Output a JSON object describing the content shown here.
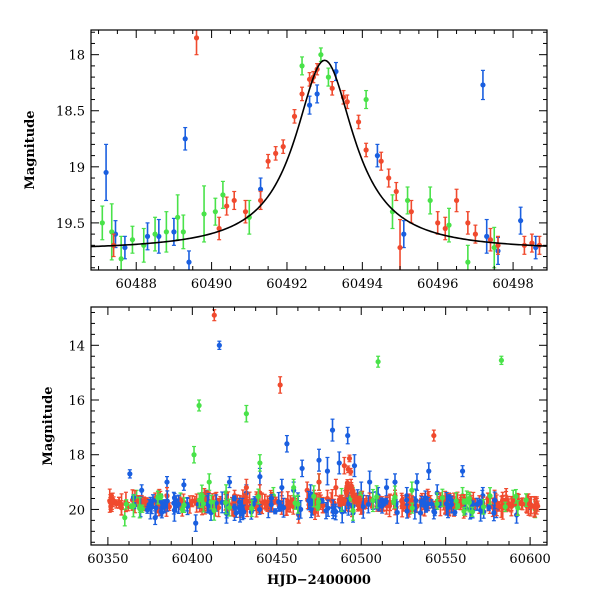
{
  "colors": {
    "blue": "#1a5fe0",
    "green": "#49e249",
    "red": "#f04a2e",
    "model": "#000000"
  },
  "chart_data": [
    {
      "type": "scatter",
      "title": "",
      "xlabel": "",
      "ylabel": "Magnitude",
      "xlim": [
        60486.8,
        60498.9
      ],
      "ylim": [
        19.92,
        17.78
      ],
      "y_inverted": true,
      "x_ticks": [
        60488,
        60490,
        60492,
        60494,
        60496,
        60498
      ],
      "y_ticks": [
        18,
        18.5,
        19,
        19.5
      ],
      "grid": false,
      "legend": "none",
      "model": {
        "type": "lorentzian",
        "peak_x": 60493.0,
        "peak_mag": 18.05,
        "baseline_mag": 19.75,
        "half_width": 0.95
      },
      "series": [
        {
          "color": "blue",
          "points": [
            [
              60487.2,
              19.05,
              0.25
            ],
            [
              60487.45,
              19.6,
              0.12
            ],
            [
              60487.7,
              19.72,
              0.1
            ],
            [
              60488.3,
              19.62,
              0.12
            ],
            [
              60488.6,
              19.62,
              0.15
            ],
            [
              60489.0,
              19.58,
              0.12
            ],
            [
              60489.3,
              18.75,
              0.1
            ],
            [
              60489.4,
              19.85,
              0.1
            ],
            [
              60491.3,
              19.2,
              0.1
            ],
            [
              60492.6,
              18.45,
              0.08
            ],
            [
              60492.8,
              18.35,
              0.08
            ],
            [
              60493.3,
              18.15,
              0.08
            ],
            [
              60494.4,
              18.9,
              0.1
            ],
            [
              60495.1,
              19.6,
              0.12
            ],
            [
              60497.2,
              18.27,
              0.13
            ],
            [
              60497.3,
              19.62,
              0.15
            ],
            [
              60497.6,
              19.75,
              0.12
            ],
            [
              60498.2,
              19.48,
              0.12
            ],
            [
              60498.6,
              19.72,
              0.1
            ]
          ]
        },
        {
          "color": "green",
          "points": [
            [
              60487.1,
              19.5,
              0.15
            ],
            [
              60487.35,
              19.58,
              0.25
            ],
            [
              60487.6,
              19.82,
              0.2
            ],
            [
              60487.9,
              19.65,
              0.12
            ],
            [
              60488.2,
              19.7,
              0.15
            ],
            [
              60488.5,
              19.6,
              0.15
            ],
            [
              60488.8,
              19.58,
              0.18
            ],
            [
              60489.1,
              19.45,
              0.2
            ],
            [
              60489.25,
              19.58,
              0.15
            ],
            [
              60489.8,
              19.42,
              0.25
            ],
            [
              60490.1,
              19.4,
              0.12
            ],
            [
              60490.3,
              19.25,
              0.12
            ],
            [
              60491.0,
              19.45,
              0.15
            ],
            [
              60492.4,
              18.1,
              0.08
            ],
            [
              60492.9,
              18.0,
              0.06
            ],
            [
              60493.1,
              18.2,
              0.08
            ],
            [
              60494.1,
              18.4,
              0.08
            ],
            [
              60494.8,
              19.4,
              0.15
            ],
            [
              60495.2,
              19.3,
              0.12
            ],
            [
              60495.8,
              19.3,
              0.12
            ],
            [
              60496.3,
              19.52,
              0.15
            ],
            [
              60496.8,
              19.85,
              0.15
            ],
            [
              60497.5,
              19.72,
              0.18
            ]
          ]
        },
        {
          "color": "red",
          "points": [
            [
              60487.4,
              19.7,
              0.1
            ],
            [
              60489.6,
              17.85,
              0.15
            ],
            [
              60490.2,
              19.55,
              0.1
            ],
            [
              60490.4,
              19.35,
              0.08
            ],
            [
              60490.6,
              19.3,
              0.08
            ],
            [
              60490.9,
              19.4,
              0.1
            ],
            [
              60491.3,
              19.3,
              0.08
            ],
            [
              60491.5,
              18.95,
              0.06
            ],
            [
              60491.7,
              18.88,
              0.06
            ],
            [
              60491.9,
              18.82,
              0.06
            ],
            [
              60492.2,
              18.55,
              0.06
            ],
            [
              60492.4,
              18.35,
              0.06
            ],
            [
              60492.6,
              18.22,
              0.06
            ],
            [
              60492.7,
              18.2,
              0.05
            ],
            [
              60492.8,
              18.13,
              0.05
            ],
            [
              60493.2,
              18.3,
              0.06
            ],
            [
              60493.5,
              18.38,
              0.06
            ],
            [
              60493.6,
              18.42,
              0.06
            ],
            [
              60493.9,
              18.6,
              0.06
            ],
            [
              60494.1,
              18.85,
              0.06
            ],
            [
              60494.5,
              18.95,
              0.08
            ],
            [
              60494.7,
              19.1,
              0.08
            ],
            [
              60494.9,
              19.22,
              0.08
            ],
            [
              60495.0,
              19.72,
              0.25
            ],
            [
              60495.3,
              19.4,
              0.1
            ],
            [
              60496.0,
              19.5,
              0.1
            ],
            [
              60496.2,
              19.55,
              0.1
            ],
            [
              60496.5,
              19.3,
              0.1
            ],
            [
              60496.8,
              19.5,
              0.1
            ],
            [
              60497.0,
              19.6,
              0.08
            ],
            [
              60497.4,
              19.65,
              0.1
            ],
            [
              60497.6,
              19.7,
              0.08
            ],
            [
              60498.3,
              19.7,
              0.08
            ],
            [
              60498.5,
              19.68,
              0.08
            ],
            [
              60498.7,
              19.7,
              0.08
            ]
          ]
        }
      ]
    },
    {
      "type": "scatter",
      "title": "",
      "xlabel": "HJD−2400000",
      "ylabel": "Magnitude",
      "xlim": [
        60340,
        60610
      ],
      "ylim": [
        21.3,
        12.6
      ],
      "y_inverted": true,
      "x_ticks": [
        60350,
        60400,
        60450,
        60500,
        60550,
        60600
      ],
      "y_ticks": [
        14,
        16,
        18,
        20
      ],
      "grid": false,
      "legend": "none",
      "series": [
        {
          "color": "blue",
          "points": [
            [
              60363,
              18.7,
              0.15
            ],
            [
              60370,
              19.3,
              0.2
            ],
            [
              60378,
              20.3,
              0.25
            ],
            [
              60385,
              19.0,
              0.2
            ],
            [
              60390,
              19.8,
              0.3
            ],
            [
              60395,
              19.1,
              0.2
            ],
            [
              60402,
              20.5,
              0.3
            ],
            [
              60408,
              19.5,
              0.2
            ],
            [
              60416,
              14.0,
              0.15
            ],
            [
              60422,
              19.0,
              0.2
            ],
            [
              60425,
              20.2,
              0.2
            ],
            [
              60432,
              19.4,
              0.3
            ],
            [
              60440,
              18.8,
              0.3
            ],
            [
              60445,
              20.0,
              0.3
            ],
            [
              60453,
              19.2,
              0.3
            ],
            [
              60456,
              17.6,
              0.3
            ],
            [
              60460,
              19.3,
              0.3
            ],
            [
              60465,
              18.5,
              0.3
            ],
            [
              60470,
              19.5,
              0.4
            ],
            [
              60475,
              18.2,
              0.4
            ],
            [
              60480,
              18.6,
              0.5
            ],
            [
              60483,
              17.1,
              0.4
            ],
            [
              60487,
              18.3,
              0.4
            ],
            [
              60492,
              17.3,
              0.3
            ],
            [
              60496,
              18.4,
              0.4
            ],
            [
              60500,
              19.4,
              0.4
            ],
            [
              60505,
              19.0,
              0.4
            ],
            [
              60510,
              19.5,
              0.3
            ],
            [
              60515,
              19.2,
              0.3
            ],
            [
              60520,
              19.0,
              0.3
            ],
            [
              60527,
              19.5,
              0.3
            ],
            [
              60533,
              19.0,
              0.3
            ],
            [
              60540,
              18.6,
              0.3
            ],
            [
              60545,
              19.4,
              0.3
            ],
            [
              60552,
              19.7,
              0.3
            ],
            [
              60560,
              18.6,
              0.2
            ],
            [
              60565,
              20.0,
              0.3
            ],
            [
              60572,
              19.5,
              0.3
            ],
            [
              60580,
              20.0,
              0.3
            ],
            [
              60592,
              20.2,
              0.3
            ],
            [
              60600,
              19.8,
              0.2
            ]
          ]
        },
        {
          "color": "green",
          "points": [
            [
              60360,
              20.3,
              0.3
            ],
            [
              60367,
              19.6,
              0.3
            ],
            [
              60380,
              19.5,
              0.2
            ],
            [
              60393,
              19.7,
              0.3
            ],
            [
              60401,
              18.0,
              0.3
            ],
            [
              60404,
              16.2,
              0.2
            ],
            [
              60410,
              19.0,
              0.3
            ],
            [
              60420,
              19.4,
              0.3
            ],
            [
              60432,
              16.5,
              0.3
            ],
            [
              60440,
              18.3,
              0.3
            ],
            [
              60448,
              19.5,
              0.3
            ],
            [
              60460,
              19.2,
              0.3
            ],
            [
              60475,
              19.0,
              0.3
            ],
            [
              60495,
              19.5,
              0.3
            ],
            [
              60510,
              14.6,
              0.2
            ],
            [
              60520,
              19.6,
              0.3
            ],
            [
              60530,
              19.3,
              0.3
            ],
            [
              60545,
              19.7,
              0.3
            ],
            [
              60560,
              19.5,
              0.3
            ],
            [
              60583,
              14.55,
              0.15
            ],
            [
              60590,
              19.6,
              0.3
            ],
            [
              60603,
              20.0,
              0.3
            ]
          ]
        },
        {
          "color": "red",
          "points": [
            [
              60355,
              19.8,
              0.15
            ],
            [
              60362,
              19.9,
              0.15
            ],
            [
              60370,
              19.7,
              0.2
            ],
            [
              60378,
              19.6,
              0.2
            ],
            [
              60385,
              19.5,
              0.3
            ],
            [
              60393,
              19.8,
              0.2
            ],
            [
              60400,
              19.7,
              0.2
            ],
            [
              60413,
              12.9,
              0.2
            ],
            [
              60420,
              19.8,
              0.2
            ],
            [
              60425,
              19.5,
              0.2
            ],
            [
              60432,
              19.2,
              0.3
            ],
            [
              60440,
              19.4,
              0.3
            ],
            [
              60446,
              19.8,
              0.2
            ],
            [
              60452,
              15.45,
              0.3
            ],
            [
              60458,
              19.8,
              0.3
            ],
            [
              60463,
              20.2,
              0.3
            ],
            [
              60468,
              19.3,
              0.3
            ],
            [
              60475,
              19.0,
              0.3
            ],
            [
              60480,
              19.6,
              0.3
            ],
            [
              60485,
              19.2,
              0.3
            ],
            [
              60490,
              18.4,
              0.3
            ],
            [
              60494,
              19.2,
              0.3
            ],
            [
              60498,
              19.7,
              0.3
            ],
            [
              60505,
              19.6,
              0.2
            ],
            [
              60512,
              19.8,
              0.2
            ],
            [
              60520,
              19.5,
              0.2
            ],
            [
              60530,
              19.7,
              0.2
            ],
            [
              60537,
              19.8,
              0.2
            ],
            [
              60543,
              17.3,
              0.2
            ],
            [
              60548,
              19.7,
              0.2
            ],
            [
              60555,
              20.0,
              0.2
            ],
            [
              60565,
              19.7,
              0.2
            ],
            [
              60575,
              19.6,
              0.2
            ],
            [
              60585,
              19.8,
              0.2
            ],
            [
              60595,
              19.8,
              0.2
            ],
            [
              60604,
              19.8,
              0.2
            ]
          ]
        },
        {
          "color": "red",
          "dense_band": true,
          "x_range": [
            60350,
            60605
          ],
          "mag": 19.8,
          "spread": 0.15,
          "count": 260
        },
        {
          "color": "blue",
          "dense_band": true,
          "x_range": [
            60365,
            60585
          ],
          "mag": 19.85,
          "spread": 0.3,
          "count": 120
        },
        {
          "color": "green",
          "dense_band": true,
          "x_range": [
            60360,
            60605
          ],
          "mag": 19.8,
          "spread": 0.3,
          "count": 50
        },
        {
          "color": "red",
          "bump": true,
          "peak_x": 60493,
          "peak_mag": 18.05,
          "baseline_mag": 19.75,
          "half_width": 0.95,
          "x_range": [
            60486,
            60499
          ],
          "count": 40
        }
      ]
    }
  ]
}
